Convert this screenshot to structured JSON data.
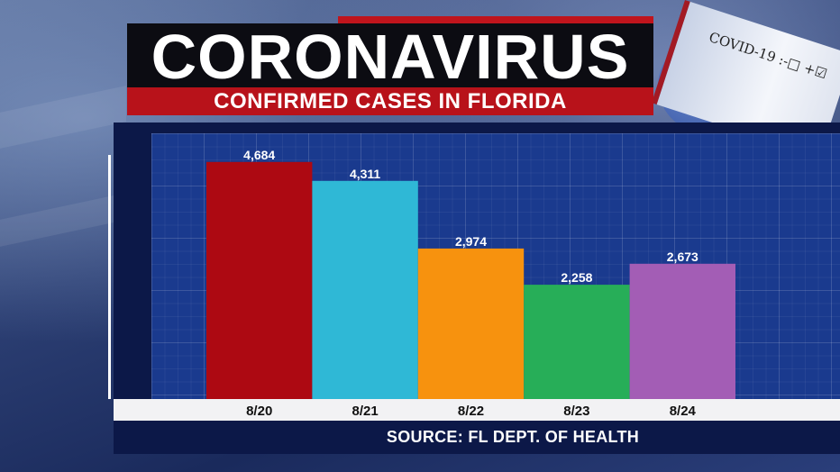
{
  "header": {
    "title": "CORONAVIRUS",
    "subtitle": "CONFIRMED CASES IN FLORIDA"
  },
  "background": {
    "tube_label": "COVID-19 :-□ +☑"
  },
  "footer": {
    "source": "SOURCE: FL DEPT. OF HEALTH"
  },
  "chart_data": {
    "type": "bar",
    "title": "CORONAVIRUS",
    "subtitle": "CONFIRMED CASES IN FLORIDA",
    "categories": [
      "8/20",
      "8/21",
      "8/22",
      "8/23",
      "8/24"
    ],
    "values": [
      4684,
      4311,
      2974,
      2258,
      2673
    ],
    "value_labels": [
      "4,684",
      "4,311",
      "2,974",
      "2,258",
      "2,673"
    ],
    "colors": [
      "#ad0912",
      "#2fb8d6",
      "#f7920e",
      "#27ae58",
      "#a35db5"
    ],
    "xlabel": "",
    "ylabel": "",
    "ylim": [
      0,
      5250
    ],
    "grid": true,
    "legend": "none"
  }
}
